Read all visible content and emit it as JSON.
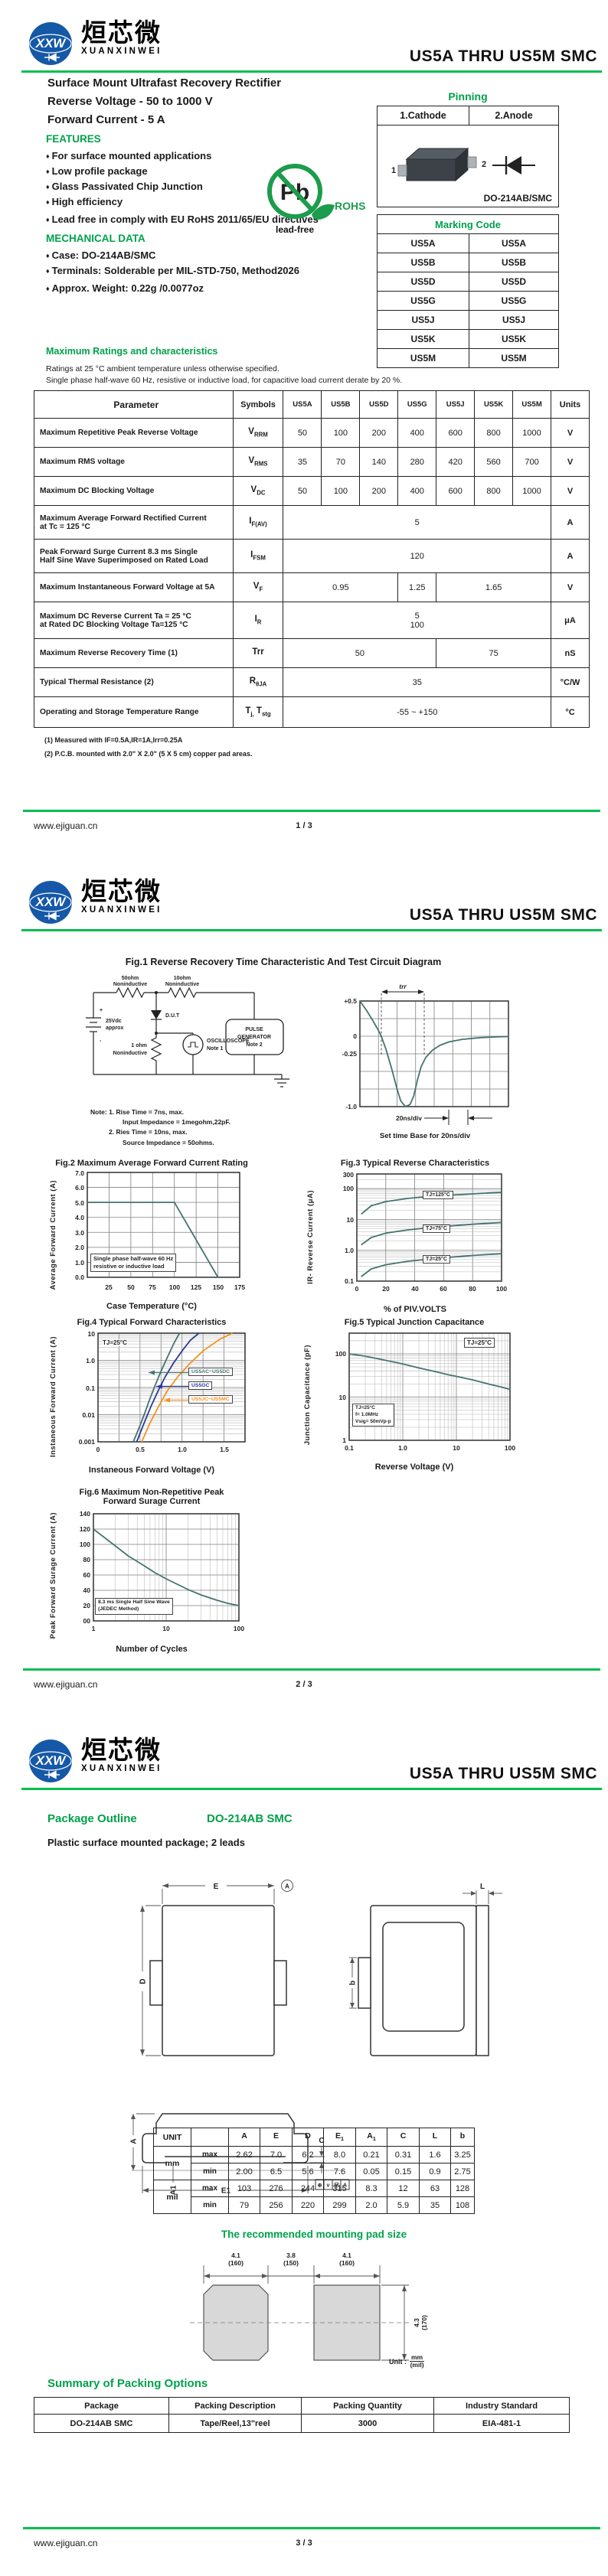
{
  "meta": {
    "logo_mark": "XXW",
    "brand_cn": "烜芯微",
    "brand_en": "XUANXINWEI",
    "doc_title": "US5A THRU US5M  SMC",
    "bullet": "♦",
    "website": "www.ejiguan.cn",
    "page_nums": [
      "1 / 3",
      "2 / 3",
      "3 / 3"
    ]
  },
  "colors": {
    "accent_green": "#00A14B",
    "rule_green": "#00BF4E",
    "curve_teal": "#44736F",
    "curve_blue": "#2B3896",
    "curve_orange": "#F5911E",
    "logo_blue": "#1558A7",
    "pb_green": "#1C9C4C"
  },
  "page1": {
    "product_line1": "Surface Mount Ultrafast Recovery Rectifier",
    "product_line2": "Reverse Voltage - 50 to 1000 V",
    "product_line3": "Forward Current - 5 A",
    "features_title": "FEATURES",
    "features": [
      "For surface mounted applications",
      "Low profile package",
      "Glass Passivated Chip Junction",
      "High efficiency",
      "Lead free in comply with EU RoHS 2011/65/EU directives"
    ],
    "mech_title": "MECHANICAL DATA",
    "mech": [
      "Case: DO-214AB/SMC",
      "Terminals: Solderable per MIL-STD-750, Method2026",
      "Approx. Weight: 0.22g /0.0077oz"
    ],
    "pb": {
      "symbol": "Pb",
      "rohs": "ROHS",
      "leadfree": "lead-free"
    },
    "pinning": {
      "title": "Pinning",
      "cathode": "1.Cathode",
      "anode": "2.Anode",
      "pin1": "1",
      "pin2": "2",
      "package": "DO-214AB/SMC"
    },
    "marking": {
      "title": "Marking Code",
      "rows": [
        [
          "US5A",
          "US5A"
        ],
        [
          "US5B",
          "US5B"
        ],
        [
          "US5D",
          "US5D"
        ],
        [
          "US5G",
          "US5G"
        ],
        [
          "US5J",
          "US5J"
        ],
        [
          "US5K",
          "US5K"
        ],
        [
          "US5M",
          "US5M"
        ]
      ]
    },
    "ratings": {
      "title": "Maximum Ratings and characteristics",
      "cond1": "Ratings at 25 °C ambient temperature unless otherwise specified.",
      "cond2": "Single phase half-wave 60 Hz, resistive or inductive load, for capacitive load current derate by 20 %.",
      "headers": [
        "Parameter",
        "Symbols",
        "US5A",
        "US5B",
        "US5D",
        "US5G",
        "US5J",
        "US5K",
        "US5M",
        "Units"
      ],
      "r1": {
        "param": "Maximum Repetitive Peak Reverse Voltage",
        "sym": "V",
        "sub": "RRM",
        "v": [
          "50",
          "100",
          "200",
          "400",
          "600",
          "800",
          "1000"
        ],
        "unit": "V"
      },
      "r2": {
        "param": "Maximum RMS voltage",
        "sym": "V",
        "sub": "RMS",
        "v": [
          "35",
          "70",
          "140",
          "280",
          "420",
          "560",
          "700"
        ],
        "unit": "V"
      },
      "r3": {
        "param": "Maximum DC Blocking Voltage",
        "sym": "V",
        "sub": "DC",
        "v": [
          "50",
          "100",
          "200",
          "400",
          "600",
          "800",
          "1000"
        ],
        "unit": "V"
      },
      "r4": {
        "param1": "Maximum Average Forward Rectified Current",
        "param2": "at Tc = 125 °C",
        "sym": "I",
        "sub": "F(AV)",
        "v": "5",
        "unit": "A"
      },
      "r5": {
        "param1": "Peak Forward Surge Current 8.3 ms Single",
        "param2": "Half Sine Wave Superimposed on Rated Load",
        "sym": "I",
        "sub": "FSM",
        "v": "120",
        "unit": "A"
      },
      "r6": {
        "param": "Maximum Instantaneous Forward Voltage at 5A",
        "sym": "V",
        "sub": "F",
        "v1": "0.95",
        "v2": "1.25",
        "v3": "1.65",
        "unit": "V"
      },
      "r7": {
        "param1": "Maximum DC Reverse Current   Ta = 25 °C",
        "param2": "at Rated DC Blocking Voltage    Ta=125 °C",
        "sym": "I",
        "sub": "R",
        "v1": "5",
        "v2": "100",
        "unit": "μA"
      },
      "r8": {
        "param": "Maximum Reverse Recovery Time (1)",
        "sym": "Trr",
        "sub": "",
        "v1": "50",
        "v2": "75",
        "unit": "nS"
      },
      "r9": {
        "param": "Typical Thermal Resistance (2)",
        "sym": "R",
        "sub": "θJA",
        "v": "35",
        "unit": "°C/W"
      },
      "r10": {
        "param": "Operating and Storage Temperature Range",
        "s1": "T",
        "b1": "j,",
        "s2": " T",
        "b2": "stg",
        "v": "-55 ~ +150",
        "unit": "°C"
      },
      "fn1": "(1) Measured with IF=0.5A,IR=1A,Irr=0.25A",
      "fn2": "(2) P.C.B. mounted with 2.0\" X 2.0\" (5 X 5 cm) copper pad areas."
    }
  },
  "page2": {
    "fig1": {
      "circuit": {
        "r1a": "50ohm",
        "r1b": "Noninductive",
        "r2a": "10ohm",
        "r2b": "Noninductive",
        "dut": "D.U.T",
        "plus": "+",
        "minus": "-",
        "batt1": "25Vdc",
        "batt2": "approx",
        "r3a": "1 ohm",
        "r3b": "Noninductive",
        "scope1": "OSCILLOSCOPE",
        "scope2": "Note 1",
        "gen1": "PULSE",
        "gen2": "GENERATOR",
        "gen3": "Note 2"
      },
      "notes": [
        "Note:  1. Rise Time = 7ns, max.",
        "Input Impedance = 1megohm,22pF.",
        "2. Ries Time = 10ns, max.",
        "Source Impedance = 50ohms."
      ],
      "wave": {
        "trr": "trr",
        "yticks": [
          "+0.5",
          "0",
          "-0.25",
          "-1.0"
        ],
        "div": "20ns/div",
        "caption": "Set time Base for 20ns/div"
      }
    },
    "fig2": {
      "yticks": [
        "7.0",
        "6.0",
        "5.0",
        "4.0",
        "3.0",
        "2.0",
        "1.0",
        "0.0"
      ],
      "xticks": [
        "25",
        "50",
        "75",
        "100",
        "125",
        "150",
        "175"
      ],
      "ann1": "Single phase half-wave 60 Hz",
      "ann2": "resistive or inductive load"
    },
    "fig3": {
      "yticks": [
        "300",
        "100",
        "10",
        "1.0",
        "0.1"
      ],
      "xticks": [
        "0",
        "20",
        "40",
        "60",
        "80",
        "100"
      ],
      "c1": "TJ=125°C",
      "c2": "TJ=75°C",
      "c3": "TJ=25°C"
    },
    "fig4": {
      "yticks": [
        "10",
        "1.0",
        "0.1",
        "0.01",
        "0.001"
      ],
      "xticks": [
        "0",
        "0.5",
        "1.0",
        "1.5"
      ],
      "ann": "TJ=25°C",
      "leg1": "US5AC~US5DC",
      "leg2": "US5GC",
      "leg3": "US5JC~US5MC"
    },
    "fig5": {
      "yticks": [
        "100",
        "10",
        "1"
      ],
      "xticks": [
        "0.1",
        "1.0",
        "10",
        "100"
      ],
      "ann": "TJ=25°C",
      "box": [
        "TJ=25°C",
        "f= 1.0MHz",
        "Vsig= 50mVp-p"
      ]
    },
    "fig6": {
      "title1": "Fig.6  Maximum Non-Repetitive Peak",
      "title2": "Forward Surage Current",
      "yticks": [
        "140",
        "120",
        "100",
        "80",
        "60",
        "40",
        "20",
        "00"
      ],
      "xticks": [
        "1",
        "10",
        "100"
      ],
      "ann1": "8.3 ms Single Half Sine Wave",
      "ann2": "(JEDEC Method)"
    }
  },
  "page3": {
    "outline_title": "Package Outline",
    "outline_pkg": "DO-214AB SMC",
    "outline_desc": "Plastic surface mounted package; 2 leads",
    "dims": {
      "E": "E",
      "D": "D",
      "Acirc": "A",
      "b": "b",
      "L": "L",
      "A": "A",
      "A1": "A1",
      "E1": "E1",
      "C": "C"
    },
    "tol": [
      "⊕",
      "v",
      "Ⓜ",
      "A"
    ],
    "dim_table": {
      "unit": "UNIT",
      "mm": "mm",
      "mil": "mil",
      "max": "max",
      "min": "min",
      "cols": [
        {
          "t": "A"
        },
        {
          "t": "E"
        },
        {
          "t": "D"
        },
        {
          "t": "E",
          "s": "1"
        },
        {
          "t": "A",
          "s": "1"
        },
        {
          "t": "C"
        },
        {
          "t": "L"
        },
        {
          "t": "b"
        }
      ],
      "mm_max": [
        "2.62",
        "7.0",
        "6.2",
        "8.0",
        "0.21",
        "0.31",
        "1.6",
        "3.25"
      ],
      "mm_min": [
        "2.00",
        "6.5",
        "5.6",
        "7.6",
        "0.05",
        "0.15",
        "0.9",
        "2.75"
      ],
      "mil_max": [
        "103",
        "276",
        "244",
        "315",
        "8.3",
        "12",
        "63",
        "128"
      ],
      "mil_min": [
        "79",
        "256",
        "220",
        "299",
        "2.0",
        "5.9",
        "35",
        "108"
      ]
    },
    "pad": {
      "title": "The recommended mounting pad size",
      "w1": "4.1",
      "w1m": "(160)",
      "gap": "3.8",
      "gapm": "(150)",
      "w2": "4.1",
      "w2m": "(160)",
      "h": "4.3",
      "hm": "(170)",
      "unit_label": "Unit :",
      "unit_mm": "mm",
      "unit_mil": "(mil)"
    },
    "packing": {
      "title": "Summary of Packing Options",
      "headers": [
        "Package",
        "Packing Description",
        "Packing Quantity",
        "Industry Standard"
      ],
      "row": [
        "DO-214AB SMC",
        "Tape/Reel,13\"reel",
        "3000",
        "EIA-481-1"
      ]
    }
  },
  "chart_data": [
    {
      "id": "fig1-reverse-recovery-waveform",
      "type": "line",
      "title": "Fig.1  Reverse Recovery Time Characteristic And Test Circuit Diagram",
      "xlabel": "20ns/div",
      "ylabel": "",
      "xlog": false,
      "xstep": 1,
      "xlim": [
        0,
        8
      ],
      "ylog": false,
      "ystep": 0.25,
      "ylim": [
        -1,
        0.5
      ],
      "series": [
        {
          "name": "recovery current",
          "color": "#44736F",
          "points": [
            [
              0,
              0.5
            ],
            [
              0.35,
              0.37
            ],
            [
              0.7,
              0.22
            ],
            [
              1.0,
              0.08
            ],
            [
              1.15,
              0
            ],
            [
              1.4,
              -0.18
            ],
            [
              1.7,
              -0.45
            ],
            [
              2.0,
              -0.75
            ],
            [
              2.2,
              -0.92
            ],
            [
              2.45,
              -1.0
            ],
            [
              2.7,
              -0.97
            ],
            [
              2.9,
              -0.85
            ],
            [
              3.1,
              -0.62
            ],
            [
              3.3,
              -0.43
            ],
            [
              3.55,
              -0.3
            ],
            [
              3.9,
              -0.2
            ],
            [
              4.3,
              -0.13
            ],
            [
              4.8,
              -0.08
            ],
            [
              5.5,
              -0.045
            ],
            [
              6.5,
              -0.02
            ],
            [
              7.5,
              -0.008
            ],
            [
              8,
              -0.005
            ]
          ]
        }
      ]
    },
    {
      "id": "fig2",
      "type": "line",
      "title": "Fig.2  Maximum Average Forward Current Rating",
      "xlabel": "Case Temperature (°C)",
      "ylabel": "Average Forward Current  (A)",
      "xlog": false,
      "xstep": 25,
      "xlim": [
        0,
        175
      ],
      "ylog": false,
      "ystep": 1,
      "ylim": [
        0,
        7
      ],
      "series": [
        {
          "name": "IF(AV) derating",
          "color": "#44736F",
          "points": [
            [
              0,
              5
            ],
            [
              100,
              5
            ],
            [
              150,
              0
            ]
          ]
        }
      ]
    },
    {
      "id": "fig3",
      "type": "line",
      "title": "Fig.3  Typical Reverse Characteristics",
      "xlabel": "% of PIV.VOLTS",
      "ylabel": "IR- Reverse Current (μA)",
      "xlog": false,
      "xstep": 20,
      "xlim": [
        0,
        100
      ],
      "ylog": true,
      "ylim": [
        0.1,
        300
      ],
      "series": [
        {
          "name": "TJ=125°C",
          "color": "#44736F",
          "points": [
            [
              3,
              15
            ],
            [
              10,
              28
            ],
            [
              20,
              38
            ],
            [
              35,
              48
            ],
            [
              50,
              56
            ],
            [
              65,
              62
            ],
            [
              80,
              68
            ],
            [
              100,
              76
            ]
          ]
        },
        {
          "name": "TJ=75°C",
          "color": "#44736F",
          "points": [
            [
              3,
              1.5
            ],
            [
              10,
              2.6
            ],
            [
              20,
              3.6
            ],
            [
              35,
              4.6
            ],
            [
              50,
              5.4
            ],
            [
              65,
              6.2
            ],
            [
              80,
              7.0
            ],
            [
              100,
              8.0
            ]
          ]
        },
        {
          "name": "TJ=25°C",
          "color": "#44736F",
          "points": [
            [
              3,
              0.14
            ],
            [
              10,
              0.25
            ],
            [
              20,
              0.34
            ],
            [
              35,
              0.44
            ],
            [
              50,
              0.52
            ],
            [
              65,
              0.6
            ],
            [
              80,
              0.68
            ],
            [
              100,
              0.78
            ]
          ]
        }
      ]
    },
    {
      "id": "fig4",
      "type": "line",
      "title": "Fig.4  Typical Forward Characteristics",
      "xlabel": "Instaneous Forward Voltage (V)",
      "ylabel": "Instaneous Forward Current (A)",
      "xlog": false,
      "xstep": 0.25,
      "xlim": [
        0,
        1.75
      ],
      "ylog": true,
      "ylim": [
        0.001,
        10
      ],
      "series": [
        {
          "name": "US5AC~US5DC",
          "color": "#44736F",
          "points": [
            [
              0.42,
              0.001
            ],
            [
              0.5,
              0.004
            ],
            [
              0.55,
              0.01
            ],
            [
              0.62,
              0.04
            ],
            [
              0.68,
              0.12
            ],
            [
              0.75,
              0.4
            ],
            [
              0.82,
              1.2
            ],
            [
              0.9,
              4
            ],
            [
              0.97,
              10
            ]
          ]
        },
        {
          "name": "US5GC",
          "color": "#2B3896",
          "points": [
            [
              0.46,
              0.001
            ],
            [
              0.55,
              0.005
            ],
            [
              0.63,
              0.02
            ],
            [
              0.72,
              0.08
            ],
            [
              0.8,
              0.25
            ],
            [
              0.9,
              0.8
            ],
            [
              1.0,
              2.2
            ],
            [
              1.1,
              5.5
            ],
            [
              1.2,
              10
            ]
          ]
        },
        {
          "name": "US5JC~US5MC",
          "color": "#F5911E",
          "points": [
            [
              0.52,
              0.001
            ],
            [
              0.62,
              0.005
            ],
            [
              0.72,
              0.02
            ],
            [
              0.83,
              0.08
            ],
            [
              0.95,
              0.25
            ],
            [
              1.1,
              0.8
            ],
            [
              1.25,
              2.2
            ],
            [
              1.45,
              6
            ],
            [
              1.6,
              10
            ]
          ]
        }
      ]
    },
    {
      "id": "fig5",
      "type": "line",
      "title": "Fig.5  Typical Junction Capacitance",
      "xlabel": "Reverse  Voltage (V)",
      "ylabel": "Junction Capacitance (pF)",
      "xlog": true,
      "xlim": [
        0.1,
        100
      ],
      "ylog": true,
      "ylim": [
        1,
        300
      ],
      "series": [
        {
          "name": "CJ at TJ=25°C",
          "color": "#44736F",
          "points": [
            [
              0.1,
              100
            ],
            [
              0.2,
              88
            ],
            [
              0.4,
              74
            ],
            [
              0.7,
              64
            ],
            [
              1,
              58
            ],
            [
              2,
              47
            ],
            [
              4,
              39
            ],
            [
              7,
              33
            ],
            [
              10,
              30
            ],
            [
              20,
              25
            ],
            [
              40,
              20
            ],
            [
              70,
              17
            ],
            [
              100,
              15
            ]
          ]
        }
      ]
    },
    {
      "id": "fig6",
      "type": "line",
      "title": "Fig.6  Maximum Non-Repetitive Peak Forward Surage Current",
      "xlabel": "Number of Cycles",
      "ylabel": "Peak Forward Surage Current (A)",
      "xlog": true,
      "xlim": [
        1,
        100
      ],
      "ylog": false,
      "ystep": 20,
      "ylim": [
        0,
        140
      ],
      "series": [
        {
          "name": "IFSM",
          "color": "#44736F",
          "points": [
            [
              1,
              120
            ],
            [
              2,
              98
            ],
            [
              3,
              85
            ],
            [
              5,
              72
            ],
            [
              7,
              63
            ],
            [
              10,
              55
            ],
            [
              20,
              41
            ],
            [
              30,
              34
            ],
            [
              50,
              27
            ],
            [
              70,
              23
            ],
            [
              100,
              20
            ]
          ]
        }
      ]
    }
  ]
}
